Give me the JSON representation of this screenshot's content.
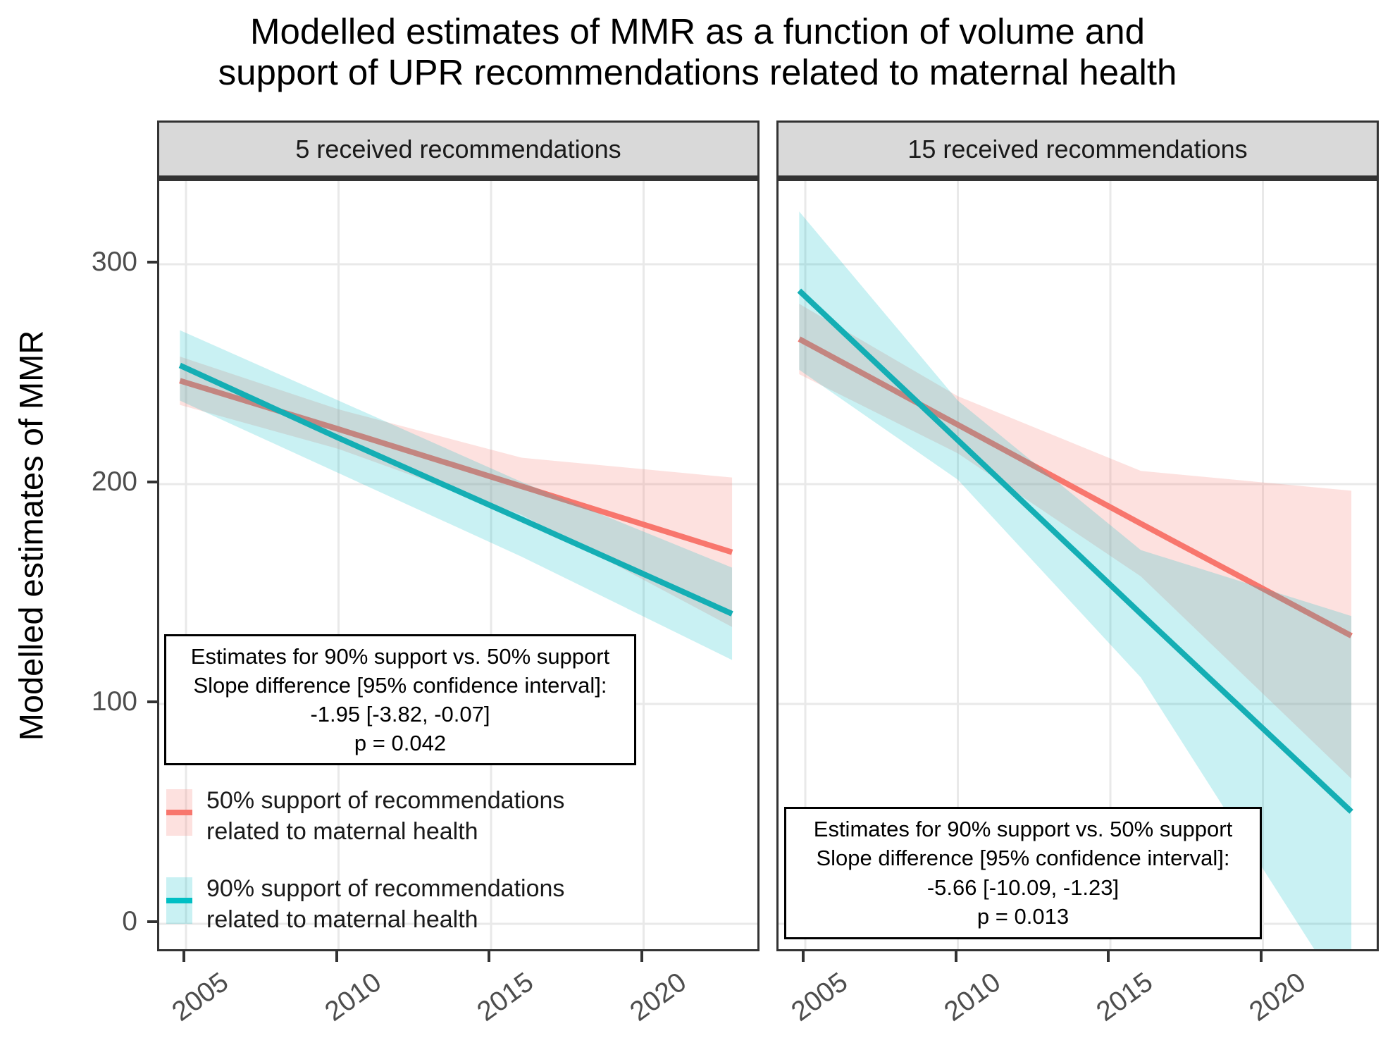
{
  "chart_data": {
    "type": "line",
    "title": "Modelled estimates of MMR as a function of volume and support of UPR recommendations related to maternal health",
    "title_lines": [
      "Modelled estimates of MMR as a function of volume and",
      "support of UPR recommendations related to maternal health"
    ],
    "ylabel": "Modelled estimates of MMR",
    "xlabel": "",
    "ylim": [
      -13,
      337
    ],
    "xlim": [
      2004.1,
      2023.9
    ],
    "grid": true,
    "legend_position": "inside top-left panel, below annotation box",
    "y_ticks": [
      0,
      100,
      200,
      300
    ],
    "x_ticks": [
      2005,
      2010,
      2015,
      2020
    ],
    "x": [
      2004.8,
      2010,
      2016,
      2022.9
    ],
    "facets": [
      {
        "label": "5 received recommendations",
        "series": [
          {
            "key": "support-50",
            "name": "50% support of recommendations related to maternal health",
            "color": "#F8766D",
            "line_color": "#F8766D",
            "ribbon_fill": "rgba(248,118,109,0.22)",
            "values": [
              247,
              225,
              199,
              169
            ],
            "ci_lower": [
              236,
              216,
              186,
              135
            ],
            "ci_upper": [
              258,
              234,
              212,
              203
            ]
          },
          {
            "key": "support-90",
            "name": "90% support of recommendations related to maternal health",
            "color": "#00BFC4",
            "line_color": "#14AEB4",
            "ribbon_fill": "rgba(0,191,196,0.21)",
            "values": [
              254,
              221,
              184,
              141
            ],
            "ci_lower": [
              238,
              205,
              167,
              120
            ],
            "ci_upper": [
              270,
              238,
              201,
              162
            ]
          }
        ],
        "annotation": [
          "Estimates for 90% support vs. 50% support",
          "Slope difference [95% confidence interval]:",
          "-1.95 [-3.82, -0.07]",
          "p = 0.042"
        ]
      },
      {
        "label": "15 received recommendations",
        "series": [
          {
            "key": "support-50",
            "name": "50% support of recommendations related to maternal health",
            "color": "#F8766D",
            "line_color": "#F8766D",
            "ribbon_fill": "rgba(248,118,109,0.22)",
            "values": [
              266,
              227,
              182,
              131
            ],
            "ci_lower": [
              250,
              214,
              158,
              66
            ],
            "ci_upper": [
              282,
              240,
              206,
              197
            ]
          },
          {
            "key": "support-90",
            "name": "90% support of recommendations related to maternal health",
            "color": "#00BFC4",
            "line_color": "#14AEB4",
            "ribbon_fill": "rgba(0,191,196,0.21)",
            "values": [
              288,
              220,
              141,
              51
            ],
            "ci_lower": [
              252,
              202,
              112,
              -38
            ],
            "ci_upper": [
              324,
              238,
              170,
              140
            ]
          }
        ],
        "annotation": [
          "Estimates for 90% support vs. 50% support",
          "Slope difference [95% confidence interval]:",
          "-5.66 [-10.09, -1.23]",
          "p = 0.013"
        ]
      }
    ],
    "legend": {
      "entries": [
        {
          "key": "support-50",
          "label_lines": [
            "50% support of recommendations",
            "related to maternal health"
          ],
          "line_color": "#F8766D",
          "ribbon_fill": "rgba(248,118,109,0.22)"
        },
        {
          "key": "support-90",
          "label_lines": [
            "90% support of recommendations",
            "related to maternal health"
          ],
          "line_color": "#00BFC4",
          "ribbon_fill": "rgba(0,191,196,0.21)"
        }
      ]
    },
    "colors": {
      "grid": "#E9E9E9",
      "panel_border": "#333333",
      "strip_background": "#D9D9D9",
      "tick_label": "#4d4d4d",
      "series_50_support": "#F8766D",
      "series_90_support": "#00BFC4"
    }
  }
}
